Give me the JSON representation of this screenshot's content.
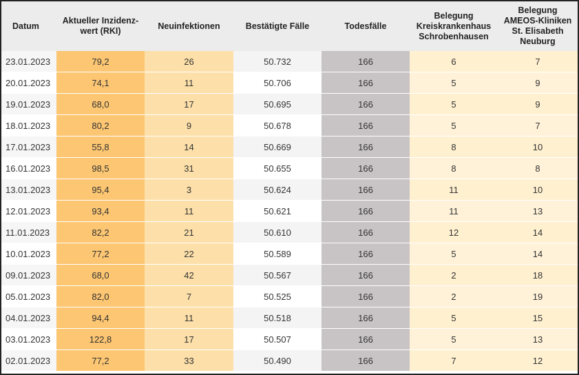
{
  "table": {
    "headers": [
      "Datum",
      "Aktueller Inzidenz-wert (RKI)",
      "Neuinfektionen",
      "Bestätigte Fälle",
      "Todesfälle",
      "Belegung Kreiskrankenhaus Schrobenhausen",
      "Belegung AMEOS-Kliniken St. Elisabeth Neuburg"
    ],
    "rows": [
      [
        "23.01.2023",
        "79,2",
        "26",
        "50.732",
        "166",
        "6",
        "7"
      ],
      [
        "20.01.2023",
        "74,1",
        "11",
        "50.706",
        "166",
        "5",
        "9"
      ],
      [
        "19.01.2023",
        "68,0",
        "17",
        "50.695",
        "166",
        "5",
        "9"
      ],
      [
        "18.01.2023",
        "80,2",
        "9",
        "50.678",
        "166",
        "5",
        "7"
      ],
      [
        "17.01.2023",
        "55,8",
        "14",
        "50.669",
        "166",
        "8",
        "10"
      ],
      [
        "16.01.2023",
        "98,5",
        "31",
        "50.655",
        "166",
        "8",
        "8"
      ],
      [
        "13.01.2023",
        "95,4",
        "3",
        "50.624",
        "166",
        "11",
        "10"
      ],
      [
        "12.01.2023",
        "93,4",
        "11",
        "50.621",
        "166",
        "11",
        "13"
      ],
      [
        "11.01.2023",
        "82,2",
        "21",
        "50.610",
        "166",
        "12",
        "14"
      ],
      [
        "10.01.2023",
        "77,2",
        "22",
        "50.589",
        "166",
        "5",
        "14"
      ],
      [
        "09.01.2023",
        "68,0",
        "42",
        "50.567",
        "166",
        "2",
        "18"
      ],
      [
        "05.01.2023",
        "82,0",
        "7",
        "50.525",
        "166",
        "2",
        "19"
      ],
      [
        "04.01.2023",
        "94,4",
        "11",
        "50.518",
        "166",
        "5",
        "15"
      ],
      [
        "03.01.2023",
        "122,8",
        "17",
        "50.507",
        "166",
        "5",
        "13"
      ],
      [
        "02.01.2023",
        "77,2",
        "33",
        "50.490",
        "166",
        "7",
        "12"
      ]
    ]
  }
}
